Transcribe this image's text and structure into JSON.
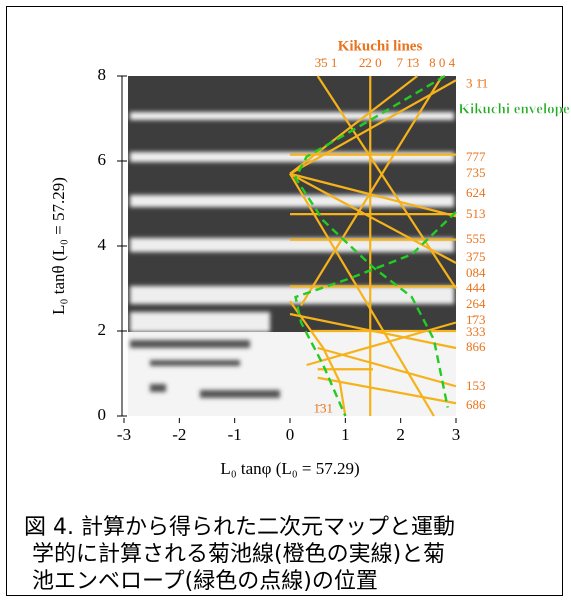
{
  "chart_data": {
    "type": "line",
    "xlabel": "L₀ tanφ    (L₀ = 57.29)",
    "ylabel": "L₀ tanθ    (L₀ = 57.29)",
    "xlim": [
      -3,
      3
    ],
    "xticks": [
      -3,
      -2,
      -1,
      0,
      1,
      2,
      3
    ],
    "ylim": [
      0,
      8
    ],
    "yticks": [
      0,
      2,
      4,
      6,
      8
    ],
    "lines_title": "Kikuchi lines",
    "envelope_title": "Kikuchi envelope",
    "line_color": "#f5b21a",
    "envelope_color": "#22cc22",
    "top_labels": [
      {
        "label": "3̄5 1",
        "x": 0.65
      },
      {
        "label": "2̄2 0",
        "x": 1.45
      },
      {
        "label": "7 1̄3",
        "x": 2.13
      },
      {
        "label": "8 0 4",
        "x": 2.75
      }
    ],
    "line_labels": [
      {
        "label": "3 1̄1",
        "y": 7.8
      },
      {
        "label": "777",
        "y": 6.07
      },
      {
        "label": "735",
        "y": 5.69
      },
      {
        "label": "624",
        "y": 5.22
      },
      {
        "label": "513",
        "y": 4.73
      },
      {
        "label": "555",
        "y": 4.14
      },
      {
        "label": "375",
        "y": 3.72
      },
      {
        "label": "084",
        "y": 3.34
      },
      {
        "label": "444",
        "y": 2.99
      },
      {
        "label": "264",
        "y": 2.61
      },
      {
        "label": "1̄73",
        "y": 2.24
      },
      {
        "label": "333",
        "y": 1.95
      },
      {
        "label": "866",
        "y": 1.6
      },
      {
        "label": "153",
        "y": 0.68
      },
      {
        "label": "686",
        "y": 0.24
      }
    ],
    "bottom_label": {
      "label": "1̄31",
      "x": 0.6,
      "y": 0.15
    },
    "kikuchi_lines": [
      {
        "x": [
          1.45,
          1.45
        ],
        "y": [
          0,
          8
        ]
      },
      {
        "x": [
          0,
          3
        ],
        "y": [
          6.15,
          6.15
        ]
      },
      {
        "x": [
          0,
          3
        ],
        "y": [
          4.75,
          4.75
        ]
      },
      {
        "x": [
          0,
          3
        ],
        "y": [
          4.15,
          4.15
        ]
      },
      {
        "x": [
          0,
          3
        ],
        "y": [
          3.05,
          3.05
        ]
      },
      {
        "x": [
          0.4,
          3
        ],
        "y": [
          2.0,
          2.0
        ]
      },
      {
        "x": [
          0.5,
          1.5
        ],
        "y": [
          1.1,
          1.1
        ]
      },
      {
        "x": [
          0,
          2.3
        ],
        "y": [
          5.7,
          8
        ]
      },
      {
        "x": [
          0,
          3
        ],
        "y": [
          5.7,
          7.9
        ]
      },
      {
        "x": [
          0.5,
          3
        ],
        "y": [
          8,
          3.0
        ]
      },
      {
        "x": [
          0,
          3
        ],
        "y": [
          5.7,
          3.6
        ]
      },
      {
        "x": [
          0,
          3
        ],
        "y": [
          5.7,
          4.7
        ]
      },
      {
        "x": [
          0,
          2.6
        ],
        "y": [
          5.7,
          0
        ]
      },
      {
        "x": [
          2.75,
          0.2
        ],
        "y": [
          8,
          2.6
        ]
      },
      {
        "x": [
          0,
          3
        ],
        "y": [
          2.4,
          1.6
        ]
      },
      {
        "x": [
          0.3,
          3
        ],
        "y": [
          1.2,
          2.2
        ]
      },
      {
        "x": [
          0.5,
          3
        ],
        "y": [
          1.6,
          0.7
        ]
      },
      {
        "x": [
          0.5,
          3
        ],
        "y": [
          0.9,
          0.3
        ]
      },
      {
        "x": [
          0,
          0.6,
          0.9,
          1.0
        ],
        "y": [
          2.7,
          1.6,
          0.8,
          0
        ]
      }
    ],
    "envelope": [
      {
        "x": [
          2.8,
          1.5,
          0.3,
          0.1,
          0.6,
          1.5,
          2.2,
          2.6,
          2.85
        ],
        "y": [
          8,
          7,
          6.1,
          5.6,
          4.6,
          3.5,
          2.8,
          1.8,
          0.2
        ]
      },
      {
        "x": [
          3,
          2.2,
          1,
          0.1,
          0.2,
          0.6,
          1
        ],
        "y": [
          4.8,
          3.8,
          3.2,
          2.8,
          2.2,
          1.2,
          0
        ]
      }
    ]
  },
  "caption": [
    "図 4. 計算から得られた二次元マップと運動",
    "学的に計算される菊池線(橙色の実線)と菊",
    "池エンベロープ(緑色の点線)の位置"
  ]
}
